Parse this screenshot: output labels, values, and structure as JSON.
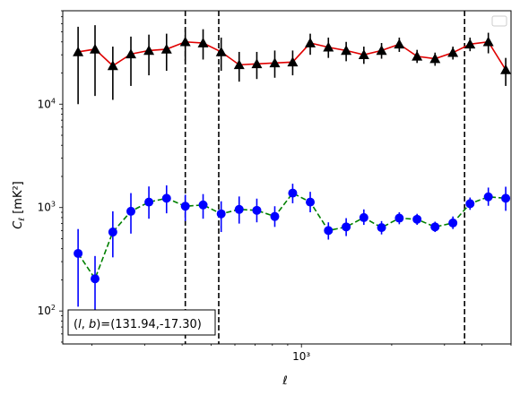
{
  "chart_data": {
    "type": "scatter",
    "xlabel": "ℓ",
    "ylabel_main": "C",
    "ylabel_sub": "ℓ",
    "ylabel_unit": "[mK²]",
    "xscale": "log",
    "yscale": "log",
    "xlim": [
      160,
      5000
    ],
    "ylim": [
      48,
      80000
    ],
    "x_tick_label": "10³",
    "y_tick_labels": [
      {
        "value": 100,
        "base": "10",
        "exp": "2"
      },
      {
        "value": 1000,
        "base": "10",
        "exp": "3"
      },
      {
        "value": 10000,
        "base": "10",
        "exp": "4"
      }
    ],
    "vlines": [
      410,
      530,
      3500
    ],
    "vline_style": "dashed",
    "vline_color": "#000000",
    "annotation": "(l, b)=(131.94,-17.30)",
    "annotation_parts": [
      "(",
      "l",
      ", ",
      "b",
      ")=(131.94,-17.30)"
    ],
    "legend": "empty box top-right",
    "series": [
      {
        "marker": "triangle",
        "marker_color": "#000000",
        "line_color": "#e00000",
        "line_style": "solid",
        "errorbar_color": "#000000",
        "points": [
          {
            "x": 180,
            "y": 32000,
            "lo": 10000,
            "hi": 56000
          },
          {
            "x": 205,
            "y": 34000,
            "lo": 12000,
            "hi": 58000
          },
          {
            "x": 235,
            "y": 23500,
            "lo": 11000,
            "hi": 36000
          },
          {
            "x": 270,
            "y": 30500,
            "lo": 15000,
            "hi": 45000
          },
          {
            "x": 310,
            "y": 33000,
            "lo": 19000,
            "hi": 47000
          },
          {
            "x": 355,
            "y": 34000,
            "lo": 21000,
            "hi": 48000
          },
          {
            "x": 410,
            "y": 40000,
            "lo": 26000,
            "hi": 54000
          },
          {
            "x": 470,
            "y": 39000,
            "lo": 27000,
            "hi": 53000
          },
          {
            "x": 540,
            "y": 32000,
            "lo": 21000,
            "hi": 44000
          },
          {
            "x": 620,
            "y": 24000,
            "lo": 16500,
            "hi": 32000
          },
          {
            "x": 710,
            "y": 24500,
            "lo": 17500,
            "hi": 32000
          },
          {
            "x": 815,
            "y": 25000,
            "lo": 18000,
            "hi": 33000
          },
          {
            "x": 935,
            "y": 25500,
            "lo": 19000,
            "hi": 33000
          },
          {
            "x": 1070,
            "y": 39000,
            "lo": 30000,
            "hi": 48000
          },
          {
            "x": 1230,
            "y": 35500,
            "lo": 28000,
            "hi": 44000
          },
          {
            "x": 1410,
            "y": 33000,
            "lo": 26000,
            "hi": 40000
          },
          {
            "x": 1615,
            "y": 30000,
            "lo": 24500,
            "hi": 36000
          },
          {
            "x": 1850,
            "y": 33000,
            "lo": 27500,
            "hi": 39000
          },
          {
            "x": 2120,
            "y": 38000,
            "lo": 32000,
            "hi": 44000
          },
          {
            "x": 2430,
            "y": 29000,
            "lo": 25000,
            "hi": 33500
          },
          {
            "x": 2790,
            "y": 27500,
            "lo": 23500,
            "hi": 31500
          },
          {
            "x": 3200,
            "y": 31500,
            "lo": 27000,
            "hi": 36000
          },
          {
            "x": 3650,
            "y": 38000,
            "lo": 32500,
            "hi": 44000
          },
          {
            "x": 4200,
            "y": 40000,
            "lo": 31000,
            "hi": 49000
          },
          {
            "x": 4800,
            "y": 21500,
            "lo": 15000,
            "hi": 28000
          }
        ]
      },
      {
        "marker": "circle",
        "marker_color": "#0000ff",
        "line_color": "#008000",
        "line_style": "dashed",
        "errorbar_color": "#0000ff",
        "points": [
          {
            "x": 180,
            "y": 360,
            "lo": 110,
            "hi": 620
          },
          {
            "x": 205,
            "y": 205,
            "lo": 72,
            "hi": 340
          },
          {
            "x": 235,
            "y": 580,
            "lo": 330,
            "hi": 920
          },
          {
            "x": 270,
            "y": 920,
            "lo": 560,
            "hi": 1380
          },
          {
            "x": 310,
            "y": 1130,
            "lo": 780,
            "hi": 1600
          },
          {
            "x": 355,
            "y": 1230,
            "lo": 880,
            "hi": 1640
          },
          {
            "x": 410,
            "y": 1030,
            "lo": 740,
            "hi": 1330
          },
          {
            "x": 470,
            "y": 1060,
            "lo": 780,
            "hi": 1350
          },
          {
            "x": 540,
            "y": 870,
            "lo": 580,
            "hi": 1150
          },
          {
            "x": 620,
            "y": 960,
            "lo": 700,
            "hi": 1280
          },
          {
            "x": 710,
            "y": 940,
            "lo": 720,
            "hi": 1220
          },
          {
            "x": 815,
            "y": 820,
            "lo": 650,
            "hi": 1030
          },
          {
            "x": 935,
            "y": 1380,
            "lo": 1100,
            "hi": 1700
          },
          {
            "x": 1070,
            "y": 1130,
            "lo": 900,
            "hi": 1420
          },
          {
            "x": 1230,
            "y": 600,
            "lo": 490,
            "hi": 720
          },
          {
            "x": 1410,
            "y": 650,
            "lo": 530,
            "hi": 790
          },
          {
            "x": 1615,
            "y": 800,
            "lo": 680,
            "hi": 960
          },
          {
            "x": 1850,
            "y": 640,
            "lo": 550,
            "hi": 740
          },
          {
            "x": 2120,
            "y": 790,
            "lo": 690,
            "hi": 900
          },
          {
            "x": 2430,
            "y": 770,
            "lo": 680,
            "hi": 870
          },
          {
            "x": 2790,
            "y": 650,
            "lo": 580,
            "hi": 730
          },
          {
            "x": 3200,
            "y": 710,
            "lo": 620,
            "hi": 820
          },
          {
            "x": 3650,
            "y": 1090,
            "lo": 950,
            "hi": 1250
          },
          {
            "x": 4200,
            "y": 1270,
            "lo": 1040,
            "hi": 1560
          },
          {
            "x": 4800,
            "y": 1230,
            "lo": 930,
            "hi": 1590
          }
        ]
      }
    ]
  }
}
